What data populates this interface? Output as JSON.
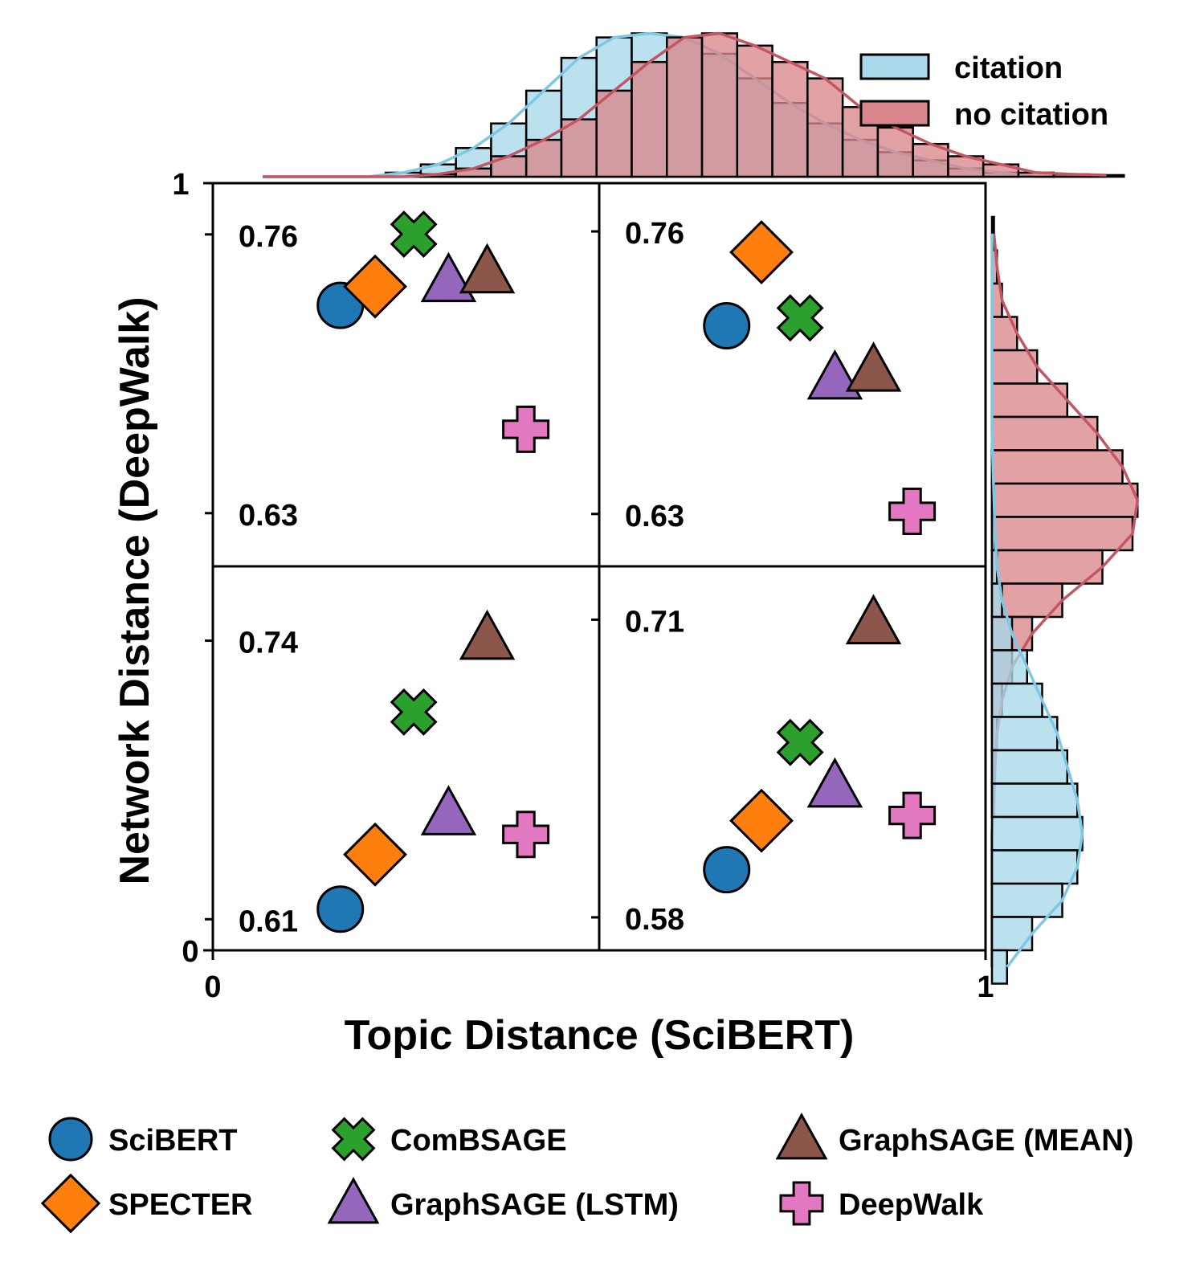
{
  "chart_data": {
    "type": "scatter",
    "title": "",
    "xlabel": "Topic Distance (SciBERT)",
    "ylabel": "Network Distance (DeepWalk)",
    "outer_axis": {
      "x_ticks": [
        "0",
        "1"
      ],
      "y_ticks": [
        "0",
        "1"
      ],
      "xlim": [
        0,
        1
      ],
      "ylim": [
        0,
        1
      ]
    },
    "models": [
      {
        "key": "scibert",
        "name": "SciBERT",
        "color": "#1f77b4",
        "marker": "circle"
      },
      {
        "key": "specter",
        "name": "SPECTER",
        "color": "#ff7f0e",
        "marker": "diamond"
      },
      {
        "key": "combsage",
        "name": "ComBSAGE",
        "color": "#2ca02c",
        "marker": "x"
      },
      {
        "key": "graphsage_lstm",
        "name": "GraphSAGE (LSTM)",
        "color": "#9467bd",
        "marker": "triangle"
      },
      {
        "key": "graphsage_mean",
        "name": "GraphSAGE (MEAN)",
        "color": "#8c564b",
        "marker": "triangle"
      },
      {
        "key": "deepwalk",
        "name": "DeepWalk",
        "color": "#e377c2",
        "marker": "plus"
      }
    ],
    "panels": [
      {
        "position": "top-left",
        "y_ticks": [
          0.76,
          0.63
        ],
        "y_tick_labels": [
          "0.76",
          "0.63"
        ],
        "ylim": [
          0.6052,
          0.7839
        ],
        "xlim": [
          0,
          1
        ],
        "points": {
          "scibert": [
            0.33,
            0.7269
          ],
          "specter": [
            0.42,
            0.7357
          ],
          "combsage": [
            0.52,
            0.7601
          ],
          "graphsage_lstm": [
            0.61,
            0.7386
          ],
          "graphsage_mean": [
            0.71,
            0.7427
          ],
          "deepwalk": [
            0.81,
            0.6691
          ]
        }
      },
      {
        "position": "top-right",
        "y_ticks": [
          0.76,
          0.63
        ],
        "y_tick_labels": [
          "0.76",
          "0.63"
        ],
        "ylim": [
          0.6059,
          0.7822
        ],
        "xlim": [
          0,
          1
        ],
        "points": {
          "scibert": [
            0.33,
            0.7166
          ],
          "specter": [
            0.42,
            0.7504
          ],
          "combsage": [
            0.52,
            0.7202
          ],
          "graphsage_lstm": [
            0.61,
            0.6927
          ],
          "graphsage_mean": [
            0.71,
            0.6963
          ],
          "deepwalk": [
            0.81,
            0.6312
          ]
        }
      },
      {
        "position": "bottom-left",
        "y_ticks": [
          0.74,
          0.61
        ],
        "y_tick_labels": [
          "0.74",
          "0.61"
        ],
        "ylim": [
          0.5955,
          0.7747
        ],
        "xlim": [
          0,
          1
        ],
        "points": {
          "scibert": [
            0.33,
            0.6147
          ],
          "specter": [
            0.42,
            0.6402
          ],
          "combsage": [
            0.52,
            0.7067
          ],
          "graphsage_lstm": [
            0.61,
            0.6594
          ],
          "graphsage_mean": [
            0.71,
            0.7413
          ],
          "deepwalk": [
            0.81,
            0.6496
          ]
        }
      },
      {
        "position": "bottom-right",
        "y_ticks": [
          0.71,
          0.58
        ],
        "y_tick_labels": [
          "0.71",
          "0.58"
        ],
        "ylim": [
          0.5656,
          0.7333
        ],
        "xlim": [
          0,
          1
        ],
        "points": {
          "scibert": [
            0.33,
            0.6008
          ],
          "specter": [
            0.42,
            0.6222
          ],
          "combsage": [
            0.52,
            0.6564
          ],
          "graphsage_lstm": [
            0.61,
            0.6375
          ],
          "graphsage_mean": [
            0.71,
            0.7088
          ],
          "deepwalk": [
            0.81,
            0.6245
          ]
        }
      }
    ],
    "marginal_x": {
      "bin_edges_start": 0.0,
      "bin_width": 0.0455,
      "series": [
        {
          "name": "citation",
          "color": "#a8d8ea",
          "line_color": "#7ec8e3",
          "counts": [
            0,
            0,
            0,
            0,
            0.5,
            1.5,
            3.5,
            6.5,
            10.5,
            14.5,
            17,
            17.5,
            17,
            15,
            12,
            9,
            6.5,
            4.5,
            3,
            2,
            1,
            0.5,
            0,
            0,
            0
          ]
        },
        {
          "name": "no citation",
          "color": "#d9878c",
          "line_color": "#c45562",
          "counts": [
            0,
            0,
            0,
            0,
            0,
            0.3,
            1,
            2.5,
            4.5,
            7,
            10.5,
            14,
            17,
            17.5,
            16,
            14,
            12,
            8.5,
            6,
            4,
            2.5,
            1.5,
            0.5,
            0.3,
            0.2
          ]
        }
      ]
    },
    "marginal_y": {
      "series": [
        {
          "name": "no citation",
          "color": "#d9878c",
          "line_color": "#c45562",
          "counts": [
            0.2,
            0.5,
            1,
            2.5,
            4.5,
            7.5,
            10.5,
            13,
            14.5,
            14,
            11,
            7,
            4,
            2,
            1,
            0.5,
            0.3,
            0.2,
            0,
            0,
            0,
            0,
            0
          ]
        },
        {
          "name": "citation",
          "color": "#a8d8ea",
          "line_color": "#7ec8e3",
          "counts": [
            0,
            0,
            0,
            0,
            0,
            0,
            0,
            0.1,
            0.2,
            0.3,
            0.5,
            1,
            2,
            3.5,
            5,
            6.5,
            7.5,
            8.5,
            9,
            8.5,
            7,
            4,
            1.5
          ]
        }
      ]
    },
    "legend": {
      "placement": "bottom",
      "hist_placement": "top-right",
      "hist_entries": [
        "citation",
        "no citation"
      ]
    }
  }
}
